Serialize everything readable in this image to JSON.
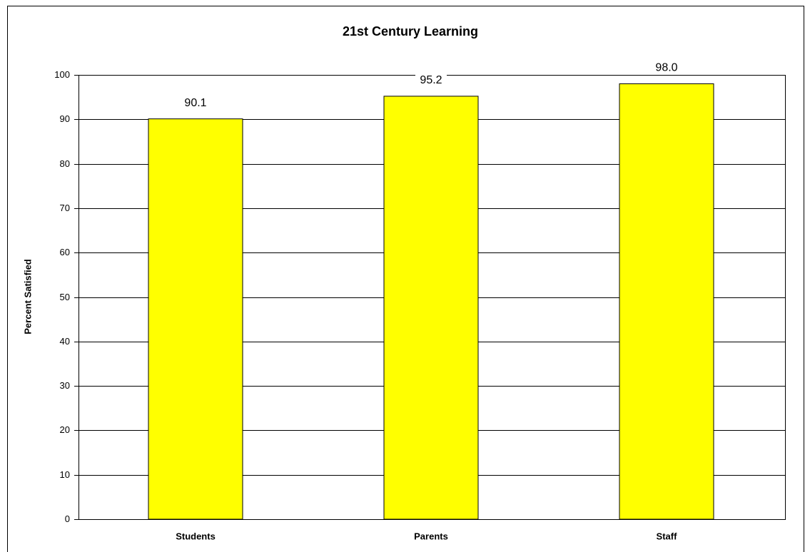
{
  "chart_data": {
    "type": "bar",
    "title": "21st Century Learning",
    "y_label": "Percent Satisfied",
    "categories": [
      "Students",
      "Parents",
      "Staff"
    ],
    "values": [
      90.1,
      95.2,
      98.0
    ],
    "value_labels": [
      "90.1",
      "95.2",
      "98.0"
    ],
    "color": "#ffff00",
    "ylim": [
      0,
      100
    ],
    "yticks": [
      0,
      10,
      20,
      30,
      40,
      50,
      60,
      70,
      80,
      90,
      100
    ],
    "grid": true
  }
}
